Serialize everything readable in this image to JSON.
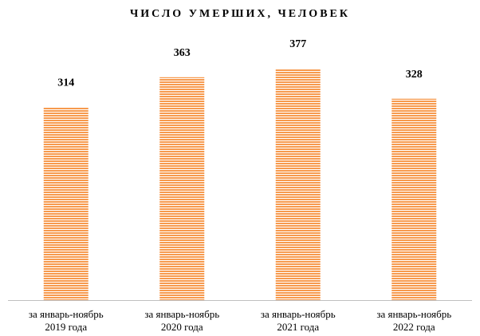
{
  "chart_data": {
    "type": "bar",
    "title": "ЧИСЛО УМЕРШИХ, ЧЕЛОВЕК",
    "categories": [
      "за январь-ноябрь\n2019 года",
      "за январь-ноябрь\n2020 года",
      "за январь-ноябрь\n2021 года",
      "за январь-ноябрь\n2022 года"
    ],
    "values": [
      314,
      363,
      377,
      328
    ],
    "color": "#f79a4e"
  }
}
